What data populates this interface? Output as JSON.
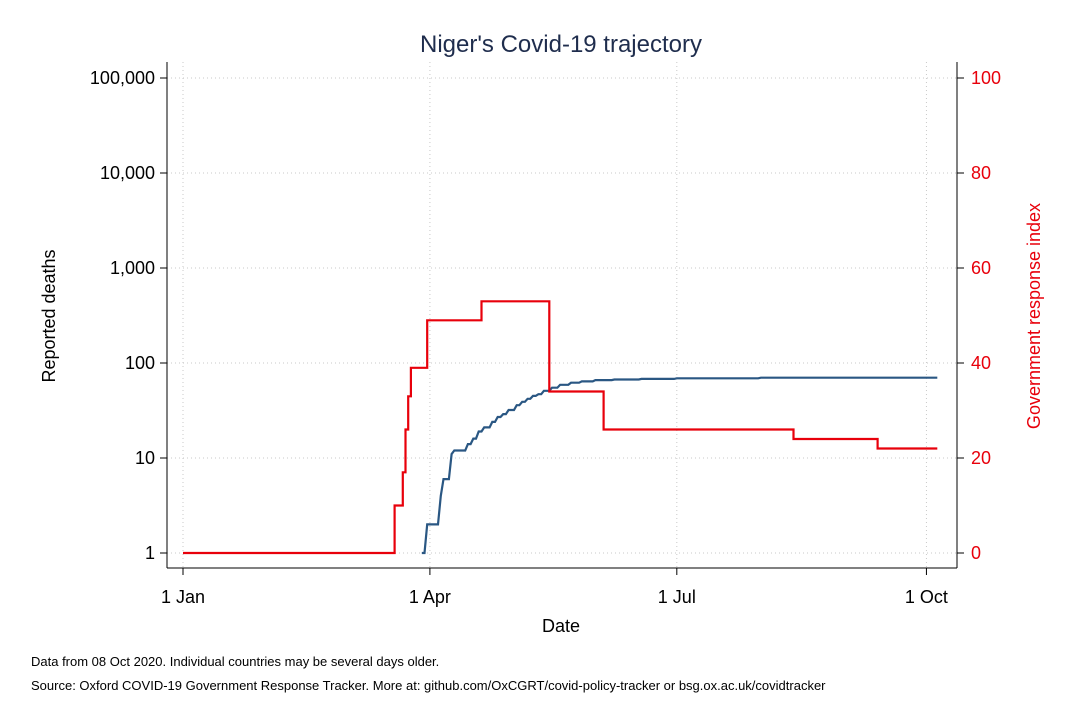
{
  "chart_data": {
    "type": "line",
    "title": "Niger's Covid-19 trajectory",
    "xlabel": "Date",
    "ylabel_left": "Reported deaths",
    "ylabel_right": "Government response index",
    "x_range": [
      "2020-01-01",
      "2020-10-06"
    ],
    "x_ticks": [
      {
        "date": "2020-01-01",
        "label": "1 Jan"
      },
      {
        "date": "2020-04-01",
        "label": "1 Apr"
      },
      {
        "date": "2020-07-01",
        "label": "1 Jul"
      },
      {
        "date": "2020-10-01",
        "label": "1 Oct"
      }
    ],
    "y_left": {
      "scale": "log",
      "range": [
        1,
        100000
      ],
      "ticks": [
        {
          "value": 1,
          "label": "1"
        },
        {
          "value": 10,
          "label": "10"
        },
        {
          "value": 100,
          "label": "100"
        },
        {
          "value": 1000,
          "label": "1,000"
        },
        {
          "value": 10000,
          "label": "10,000"
        },
        {
          "value": 100000,
          "label": "100,000"
        }
      ]
    },
    "y_right": {
      "scale": "linear",
      "range": [
        0,
        100
      ],
      "ticks": [
        {
          "value": 0,
          "label": "0"
        },
        {
          "value": 20,
          "label": "20"
        },
        {
          "value": 40,
          "label": "40"
        },
        {
          "value": 60,
          "label": "60"
        },
        {
          "value": 80,
          "label": "80"
        },
        {
          "value": 100,
          "label": "100"
        }
      ]
    },
    "grid": true,
    "series": [
      {
        "axis": "left",
        "color": "#2a5783",
        "points": [
          [
            "2020-03-29",
            1
          ],
          [
            "2020-03-31",
            2
          ],
          [
            "2020-04-05",
            4
          ],
          [
            "2020-04-06",
            6
          ],
          [
            "2020-04-09",
            11
          ],
          [
            "2020-04-10",
            12
          ],
          [
            "2020-04-15",
            14
          ],
          [
            "2020-04-17",
            16
          ],
          [
            "2020-04-19",
            19
          ],
          [
            "2020-04-21",
            21
          ],
          [
            "2020-04-24",
            24
          ],
          [
            "2020-04-26",
            27
          ],
          [
            "2020-04-28",
            29
          ],
          [
            "2020-04-30",
            32
          ],
          [
            "2020-05-03",
            36
          ],
          [
            "2020-05-05",
            39
          ],
          [
            "2020-05-07",
            42
          ],
          [
            "2020-05-09",
            45
          ],
          [
            "2020-05-11",
            47
          ],
          [
            "2020-05-13",
            51
          ],
          [
            "2020-05-16",
            55
          ],
          [
            "2020-05-19",
            59
          ],
          [
            "2020-05-23",
            62
          ],
          [
            "2020-05-27",
            64
          ],
          [
            "2020-06-01",
            66
          ],
          [
            "2020-06-08",
            67
          ],
          [
            "2020-06-18",
            68
          ],
          [
            "2020-07-01",
            69
          ],
          [
            "2020-07-15",
            69
          ],
          [
            "2020-08-01",
            70
          ],
          [
            "2020-10-05",
            70
          ]
        ]
      },
      {
        "axis": "right",
        "color": "#e8000b",
        "step": true,
        "points": [
          [
            "2020-01-01",
            0
          ],
          [
            "2020-03-19",
            10
          ],
          [
            "2020-03-22",
            17
          ],
          [
            "2020-03-23",
            26
          ],
          [
            "2020-03-24",
            33
          ],
          [
            "2020-03-25",
            39
          ],
          [
            "2020-03-31",
            49
          ],
          [
            "2020-04-20",
            53
          ],
          [
            "2020-05-15",
            34
          ],
          [
            "2020-06-04",
            26
          ],
          [
            "2020-08-13",
            24
          ],
          [
            "2020-09-13",
            22
          ],
          [
            "2020-10-05",
            22
          ]
        ]
      }
    ]
  },
  "footer": {
    "note": "Data from 08 Oct 2020. Individual countries may be several days older.",
    "source": "Source: Oxford COVID-19 Government Response Tracker. More at: github.com/OxCGRT/covid-policy-tracker or bsg.ox.ac.uk/covidtracker"
  }
}
